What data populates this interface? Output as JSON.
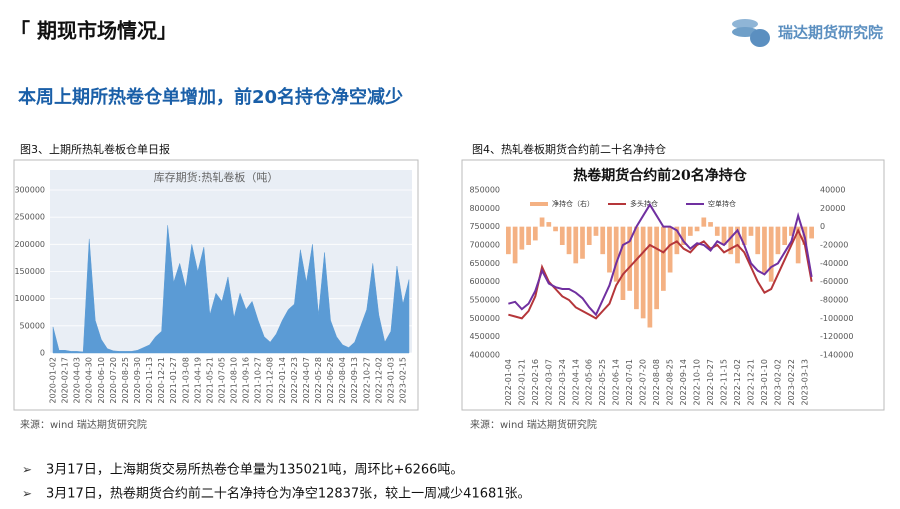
{
  "header": {
    "title": "「 期现市场情况」",
    "logo": "瑞达期货研究院"
  },
  "headline": "本周上期所热卷仓单增加，前20名持仓净空减少",
  "chart_data": [
    {
      "type": "area",
      "caption": "图3、上期所热轧卷板仓单日报",
      "title": "库存期货:热轧卷板（吨）",
      "source": "来源：wind   瑞达期货研究院",
      "color": "#5b9bd5",
      "grid": true,
      "categories": [
        "2020-01-02",
        null,
        "2020-02-17",
        null,
        "2020-04-03",
        null,
        "2020-04-30",
        null,
        "2020-06-10",
        null,
        "2020-07-20",
        null,
        "2020-08-25",
        null,
        "2020-09-30",
        null,
        "2020-11-13",
        null,
        "2020-12-21",
        null,
        "2021-01-27",
        null,
        "2021-03-08",
        null,
        "2021-04-19",
        null,
        "2021-05-21",
        null,
        "2021-07-05",
        null,
        "2021-08-10",
        null,
        "2021-09-16",
        null,
        "2021-10-27",
        null,
        "2021-12-08",
        null,
        "2022-01-14",
        null,
        "2022-02-23",
        null,
        "2022-04-07",
        null,
        "2022-05-28",
        null,
        "2022-06-26",
        null,
        "2022-08-04",
        null,
        "2022-09-13",
        null,
        "2022-10-27",
        null,
        "2022-12-02",
        null,
        "2023-01-03",
        null,
        "2023-02-15",
        null
      ],
      "values": [
        48000,
        5000,
        5000,
        3000,
        3000,
        2000,
        210000,
        60000,
        25000,
        8000,
        4000,
        3000,
        3000,
        3000,
        5000,
        10000,
        15000,
        30000,
        40000,
        235000,
        130000,
        165000,
        120000,
        200000,
        150000,
        195000,
        70000,
        110000,
        95000,
        140000,
        65000,
        110000,
        80000,
        95000,
        60000,
        30000,
        20000,
        35000,
        60000,
        80000,
        90000,
        190000,
        130000,
        200000,
        70000,
        185000,
        60000,
        30000,
        15000,
        10000,
        20000,
        50000,
        80000,
        165000,
        70000,
        20000,
        40000,
        160000,
        90000,
        135021
      ],
      "ylim": [
        0,
        300000
      ],
      "yticks": [
        0,
        50000,
        100000,
        150000,
        200000,
        250000,
        300000
      ]
    },
    {
      "type": "combo",
      "caption": "图4、热轧卷板期货合约前二十名净持仓",
      "title": "热卷期货合约前20名净持仓",
      "source": "来源：wind   瑞达期货研究院",
      "grid": false,
      "categories": [
        "2022-01-04",
        null,
        "2022-01-21",
        null,
        "2022-02-16",
        null,
        "2022-03-07",
        null,
        "2022-03-24",
        null,
        "2022-04-14",
        null,
        "2022-05-06",
        null,
        "2022-05-25",
        null,
        "2022-06-14",
        null,
        "2022-07-01",
        null,
        "2022-07-20",
        null,
        "2022-08-08",
        null,
        "2022-08-25",
        null,
        "2022-09-14",
        null,
        "2022-10-10",
        null,
        "2022-10-27",
        null,
        "2022-11-15",
        null,
        "2022-12-02",
        null,
        "2022-12-21",
        null,
        "2023-01-10",
        null,
        "2023-02-02",
        null,
        "2023-02-22",
        null,
        "2023-03-13",
        null
      ],
      "series": [
        {
          "name": "净持仓（右）",
          "type": "bar",
          "axis": "y2",
          "color": "#f4b183",
          "values": [
            -30000,
            -40000,
            -25000,
            -20000,
            -15000,
            10000,
            5000,
            -5000,
            -20000,
            -30000,
            -40000,
            -35000,
            -20000,
            -10000,
            -30000,
            -50000,
            -60000,
            -80000,
            -70000,
            -90000,
            -100000,
            -110000,
            -90000,
            -70000,
            -50000,
            -30000,
            -20000,
            -10000,
            -5000,
            10000,
            5000,
            -10000,
            -20000,
            -30000,
            -40000,
            -20000,
            -10000,
            -30000,
            -50000,
            -60000,
            -30000,
            -20000,
            -10000,
            -40000,
            -20000,
            -12837
          ]
        },
        {
          "name": "多头持仓",
          "type": "line",
          "color": "#b5363a",
          "values": [
            510000,
            505000,
            500000,
            520000,
            560000,
            640000,
            600000,
            580000,
            560000,
            550000,
            530000,
            520000,
            510000,
            500000,
            520000,
            540000,
            590000,
            620000,
            640000,
            660000,
            680000,
            700000,
            690000,
            680000,
            700000,
            710000,
            690000,
            680000,
            700000,
            710000,
            690000,
            700000,
            680000,
            690000,
            700000,
            680000,
            640000,
            600000,
            570000,
            580000,
            620000,
            660000,
            700000,
            740000,
            700000,
            600000
          ]
        },
        {
          "name": "空单持仓",
          "type": "line",
          "color": "#7030a0",
          "values": [
            540000,
            545000,
            525000,
            540000,
            575000,
            630000,
            595000,
            585000,
            580000,
            580000,
            570000,
            555000,
            530000,
            510000,
            550000,
            590000,
            650000,
            700000,
            710000,
            750000,
            780000,
            810000,
            780000,
            750000,
            750000,
            740000,
            710000,
            690000,
            705000,
            700000,
            685000,
            710000,
            700000,
            720000,
            740000,
            700000,
            650000,
            630000,
            620000,
            640000,
            650000,
            680000,
            710000,
            780000,
            720000,
            612837
          ]
        }
      ],
      "ylim": [
        400000,
        850000
      ],
      "yticks": [
        400000,
        450000,
        500000,
        550000,
        600000,
        650000,
        700000,
        750000,
        800000,
        850000
      ],
      "y2lim": [
        -140000,
        40000
      ],
      "y2ticks": [
        -140000,
        -120000,
        -100000,
        -80000,
        -60000,
        -40000,
        -20000,
        0,
        20000,
        40000
      ]
    }
  ],
  "bullets": [
    "3月17日，上海期货交易所热卷仓单量为135021吨，周环比+6266吨。",
    "3月17日，热卷期货合约前二十名净持仓为净空12837张，较上一周减少41681张。"
  ]
}
